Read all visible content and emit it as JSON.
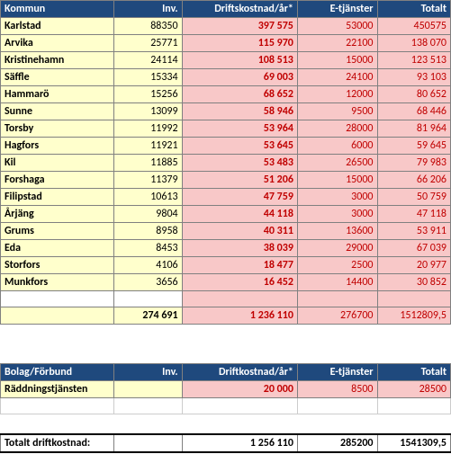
{
  "table1": {
    "headers": [
      "Kommun",
      "Inv.",
      "Driftskostnad/år*",
      "E-tjänster",
      "Totalt"
    ],
    "rows": [
      {
        "name": "Karlstad",
        "inv": "88350",
        "drift": "397 575",
        "etj": "53000",
        "tot": "450575"
      },
      {
        "name": "Arvika",
        "inv": "25771",
        "drift": "115 970",
        "etj": "22100",
        "tot": "138 070"
      },
      {
        "name": "Kristinehamn",
        "inv": "24114",
        "drift": "108 513",
        "etj": "15000",
        "tot": "123 513"
      },
      {
        "name": "Säffle",
        "inv": "15334",
        "drift": "69 003",
        "etj": "24100",
        "tot": "93 103"
      },
      {
        "name": "Hammarö",
        "inv": "15256",
        "drift": "68 652",
        "etj": "12000",
        "tot": "80 652"
      },
      {
        "name": "Sunne",
        "inv": "13099",
        "drift": "58 946",
        "etj": "9500",
        "tot": "68 446"
      },
      {
        "name": "Torsby",
        "inv": "11992",
        "drift": "53 964",
        "etj": "28000",
        "tot": "81 964"
      },
      {
        "name": "Hagfors",
        "inv": "11921",
        "drift": "53 645",
        "etj": "6000",
        "tot": "59 645"
      },
      {
        "name": "Kil",
        "inv": "11885",
        "drift": "53 483",
        "etj": "26500",
        "tot": "79 983"
      },
      {
        "name": "Forshaga",
        "inv": "11379",
        "drift": "51 206",
        "etj": "15000",
        "tot": "66 206"
      },
      {
        "name": "Filipstad",
        "inv": "10613",
        "drift": "47 759",
        "etj": "3000",
        "tot": "50 759"
      },
      {
        "name": "Årjäng",
        "inv": "9804",
        "drift": "44 118",
        "etj": "3000",
        "tot": "47 118"
      },
      {
        "name": "Grums",
        "inv": "8958",
        "drift": "40 311",
        "etj": "13600",
        "tot": "53 911"
      },
      {
        "name": "Eda",
        "inv": "8453",
        "drift": "38 039",
        "etj": "29000",
        "tot": "67 039"
      },
      {
        "name": "Storfors",
        "inv": "4106",
        "drift": "18 477",
        "etj": "2500",
        "tot": "20 977"
      },
      {
        "name": "Munkfors",
        "inv": "3656",
        "drift": "16 452",
        "etj": "14400",
        "tot": "30 852"
      }
    ],
    "totals": {
      "inv": "274 691",
      "drift": "1 236 110",
      "etj": "276700",
      "tot": "1512809,5"
    }
  },
  "table2": {
    "headers": [
      "Bolag/Förbund",
      "Inv.",
      "Driftkostnad/år*",
      "E-tjänster",
      "Totalt"
    ],
    "rows": [
      {
        "name": "Räddningstjänsten",
        "inv": "",
        "drift": "20 000",
        "etj": "8500",
        "tot": "28500"
      }
    ]
  },
  "footer": {
    "label": "Totalt driftkostnad:",
    "drift": "1 256 110",
    "etj": "285200",
    "tot": "1541309,5"
  }
}
